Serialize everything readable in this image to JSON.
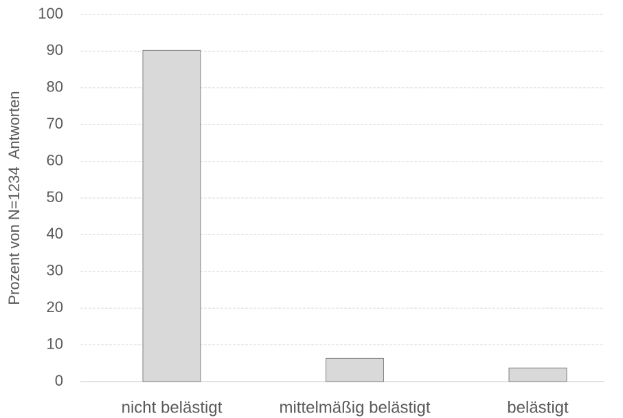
{
  "chart_data": {
    "type": "bar",
    "y_label": "Prozent von N=1234  Antworten",
    "categories": [
      "nicht belästigt",
      "mittelmäßig belästigt",
      "belästigt"
    ],
    "values": [
      90.2,
      6.3,
      3.7
    ],
    "color": "#d9d9d9",
    "ylim": [
      0,
      100
    ],
    "yticks": [
      0,
      10,
      20,
      30,
      40,
      50,
      60,
      70,
      80,
      90,
      100
    ],
    "grid": true
  }
}
